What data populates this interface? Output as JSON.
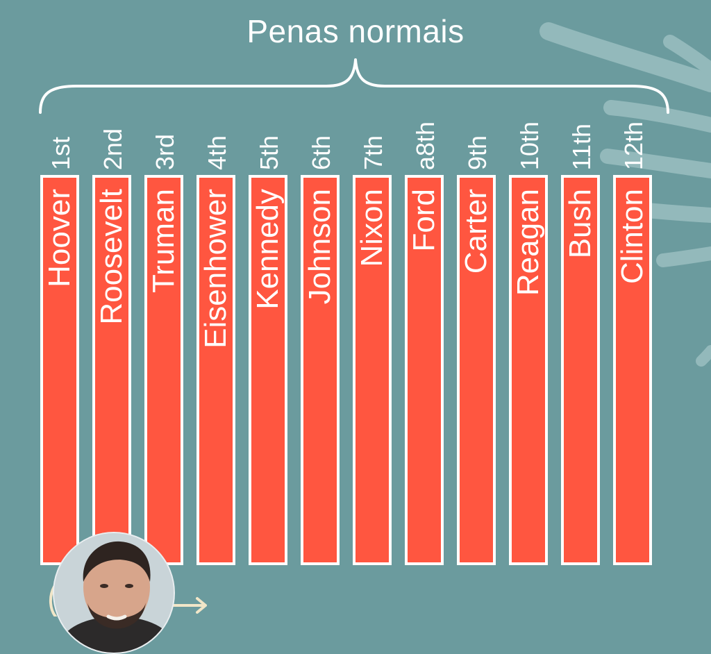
{
  "title": "Penas normais",
  "bars": [
    {
      "rank": "1st",
      "name": "Hoover"
    },
    {
      "rank": "2nd",
      "name": "Roosevelt"
    },
    {
      "rank": "3rd",
      "name": "Truman"
    },
    {
      "rank": "4th",
      "name": "Eisenhower"
    },
    {
      "rank": "5th",
      "name": "Kennedy"
    },
    {
      "rank": "6th",
      "name": "Johnson"
    },
    {
      "rank": "7th",
      "name": "Nixon"
    },
    {
      "rank": "a8th",
      "name": "Ford"
    },
    {
      "rank": "9th",
      "name": "Carter"
    },
    {
      "rank": "10th",
      "name": "Reagan"
    },
    {
      "rank": "11th",
      "name": "Bush"
    },
    {
      "rank": "12th",
      "name": "Clinton"
    }
  ],
  "colors": {
    "background": "#6b9b9e",
    "bar_fill": "#ff5640",
    "bar_border": "#ffffff",
    "text": "#ffffff"
  },
  "icons": [
    "leaf-decoration-icon",
    "curly-brace-icon",
    "arrow-right-icon",
    "presenter-avatar"
  ]
}
